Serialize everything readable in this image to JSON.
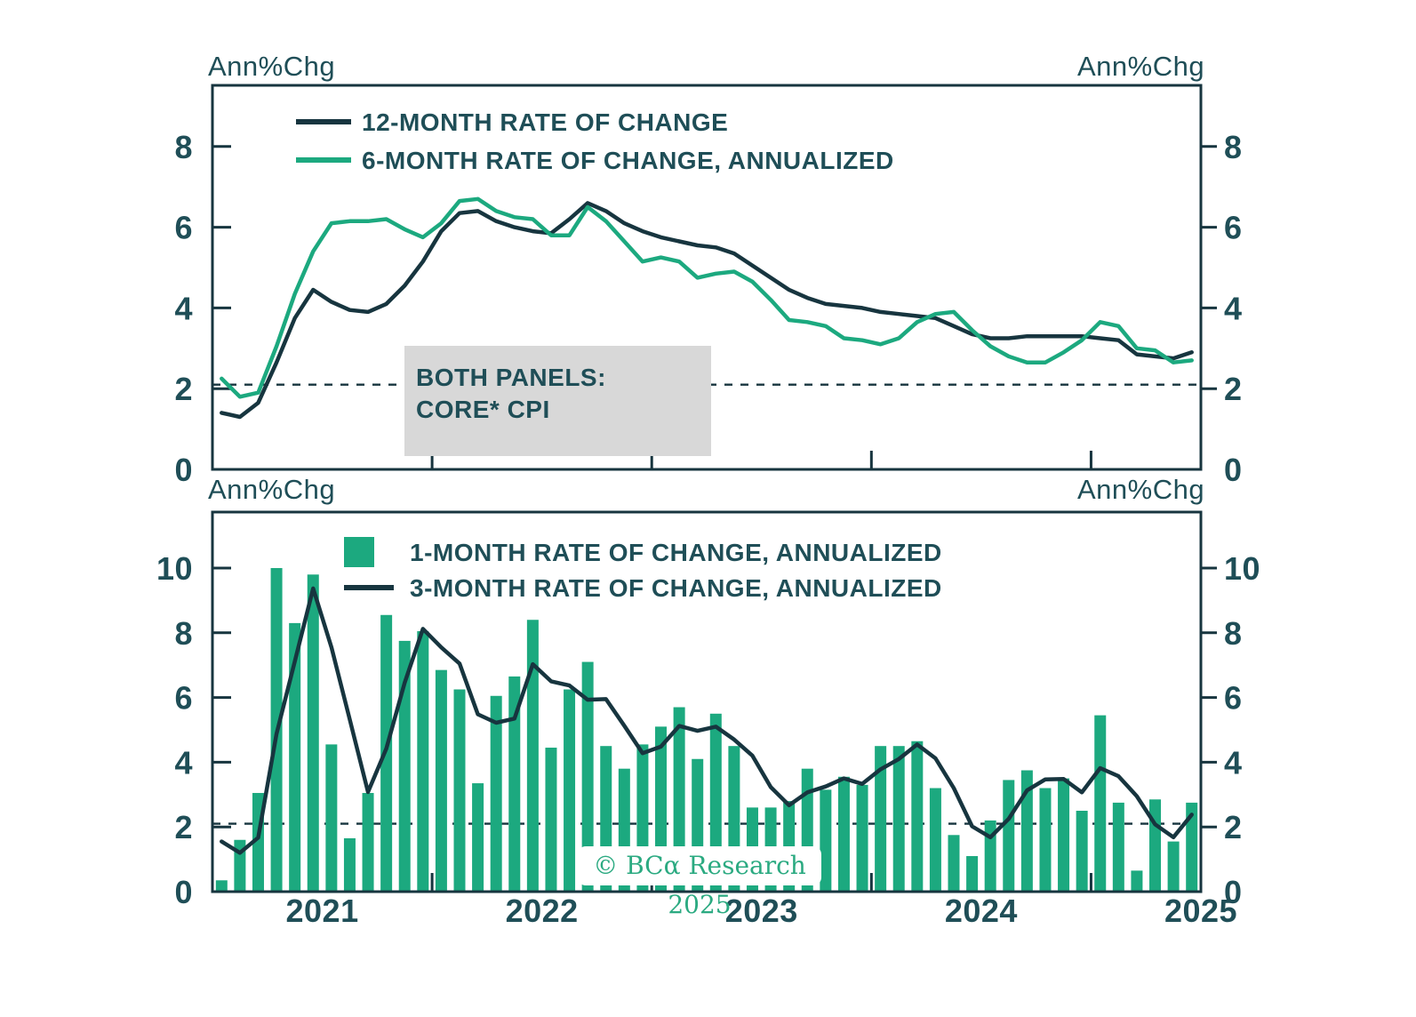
{
  "colors": {
    "dark_line": "#17353f",
    "green": "#1ca97f",
    "text": "#1f4e57",
    "gray_box": "#d8d8d8",
    "watermark_green": "#2baa81",
    "background": "#ffffff"
  },
  "annotation_box": {
    "line1": "BOTH PANELS:",
    "line2": "CORE* CPI"
  },
  "watermark": "© BCα Research 2025",
  "chart_data": [
    {
      "panel": "top",
      "type": "line",
      "frequency": "monthly",
      "x_start": "2021-01",
      "x_end": "2025-06",
      "ylabel_left": "Ann%Chg",
      "ylabel_right": "Ann%Chg",
      "ylim": [
        0,
        9.5
      ],
      "yticks": [
        0,
        2,
        4,
        6,
        8
      ],
      "dashed_reference": 2.1,
      "grid": false,
      "legend_position": "inside-top-left",
      "series": [
        {
          "name": "12-MONTH RATE OF CHANGE",
          "type": "line",
          "color_key": "dark_line",
          "values": [
            1.4,
            1.3,
            1.65,
            2.65,
            3.75,
            4.45,
            4.15,
            3.95,
            3.9,
            4.1,
            4.55,
            5.15,
            5.9,
            6.35,
            6.4,
            6.15,
            6.0,
            5.9,
            5.85,
            6.2,
            6.6,
            6.4,
            6.1,
            5.9,
            5.75,
            5.65,
            5.55,
            5.5,
            5.35,
            5.05,
            4.75,
            4.45,
            4.25,
            4.1,
            4.05,
            4.0,
            3.9,
            3.85,
            3.8,
            3.75,
            3.55,
            3.35,
            3.25,
            3.25,
            3.3,
            3.3,
            3.3,
            3.3,
            3.25,
            3.2,
            2.85,
            2.8,
            2.75,
            2.9
          ]
        },
        {
          "name": "6-MONTH RATE OF CHANGE, ANNUALIZED",
          "type": "line",
          "color_key": "green",
          "values": [
            2.25,
            1.8,
            1.9,
            3.05,
            4.35,
            5.4,
            6.1,
            6.15,
            6.15,
            6.2,
            5.95,
            5.75,
            6.1,
            6.65,
            6.7,
            6.4,
            6.25,
            6.2,
            5.8,
            5.8,
            6.5,
            6.15,
            5.65,
            5.15,
            5.25,
            5.15,
            4.75,
            4.85,
            4.9,
            4.65,
            4.2,
            3.7,
            3.65,
            3.55,
            3.25,
            3.2,
            3.1,
            3.25,
            3.65,
            3.85,
            3.9,
            3.45,
            3.05,
            2.8,
            2.65,
            2.65,
            2.9,
            3.2,
            3.65,
            3.55,
            3.0,
            2.95,
            2.65,
            2.7
          ]
        }
      ]
    },
    {
      "panel": "bottom",
      "type": "bar+line",
      "frequency": "monthly",
      "x_start": "2021-01",
      "x_end": "2025-06",
      "ylabel_left": "Ann%Chg",
      "ylabel_right": "Ann%Chg",
      "ylim": [
        0,
        11.7
      ],
      "yticks": [
        0,
        2,
        4,
        6,
        8,
        10
      ],
      "dashed_reference": 2.1,
      "grid": false,
      "xticks": [
        "2021",
        "2022",
        "2023",
        "2024",
        "2025"
      ],
      "legend_position": "inside-top-left",
      "series": [
        {
          "name": "1-MONTH RATE OF CHANGE, ANNUALIZED",
          "type": "bar",
          "color_key": "green",
          "values": [
            0.35,
            1.6,
            3.05,
            10.0,
            8.3,
            9.8,
            4.55,
            1.65,
            3.05,
            8.55,
            7.75,
            8.05,
            6.85,
            6.25,
            3.35,
            6.05,
            6.65,
            8.4,
            4.45,
            6.25,
            7.1,
            4.5,
            3.8,
            4.55,
            5.1,
            5.7,
            4.1,
            5.5,
            4.5,
            2.6,
            2.6,
            2.8,
            3.8,
            3.15,
            3.55,
            3.3,
            4.5,
            4.5,
            4.65,
            3.2,
            1.75,
            1.1,
            2.2,
            3.45,
            3.75,
            3.2,
            3.5,
            2.5,
            5.45,
            2.75,
            0.65,
            2.85,
            1.55,
            2.75
          ]
        },
        {
          "name": "3-MONTH RATE OF CHANGE, ANNUALIZED",
          "type": "line",
          "color_key": "dark_line",
          "values": [
            1.55,
            1.2,
            1.67,
            4.88,
            7.12,
            9.37,
            7.55,
            5.33,
            3.08,
            4.42,
            6.45,
            8.12,
            7.55,
            7.05,
            5.48,
            5.22,
            5.35,
            7.03,
            6.5,
            6.37,
            5.93,
            5.95,
            5.13,
            4.28,
            4.48,
            5.12,
            4.97,
            5.1,
            4.7,
            4.2,
            3.23,
            2.67,
            3.07,
            3.25,
            3.5,
            3.33,
            3.78,
            4.1,
            4.55,
            4.12,
            3.2,
            2.02,
            1.68,
            2.25,
            3.13,
            3.47,
            3.48,
            3.07,
            3.82,
            3.57,
            2.95,
            2.08,
            1.68,
            2.38
          ]
        }
      ]
    }
  ]
}
